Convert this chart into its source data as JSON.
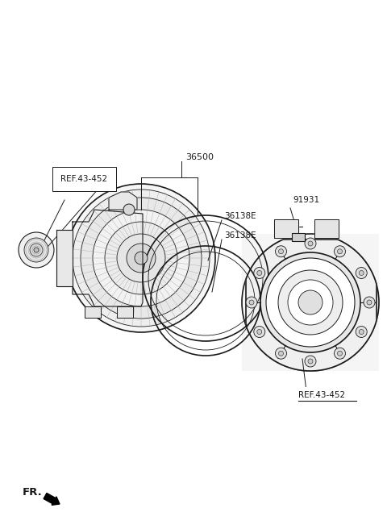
{
  "background_color": "#ffffff",
  "fig_width": 4.8,
  "fig_height": 6.56,
  "dpi": 100,
  "labels": {
    "ref_43_452_left": "REF.43-452",
    "36500": "36500",
    "36138E_top": "36138E",
    "36138E_bot": "36138E",
    "91931": "91931",
    "ref_43_452_right": "REF.43-452",
    "fr": "FR."
  },
  "font_size": 7.5,
  "line_color": "#1a1a1a",
  "line_color2": "#555555"
}
